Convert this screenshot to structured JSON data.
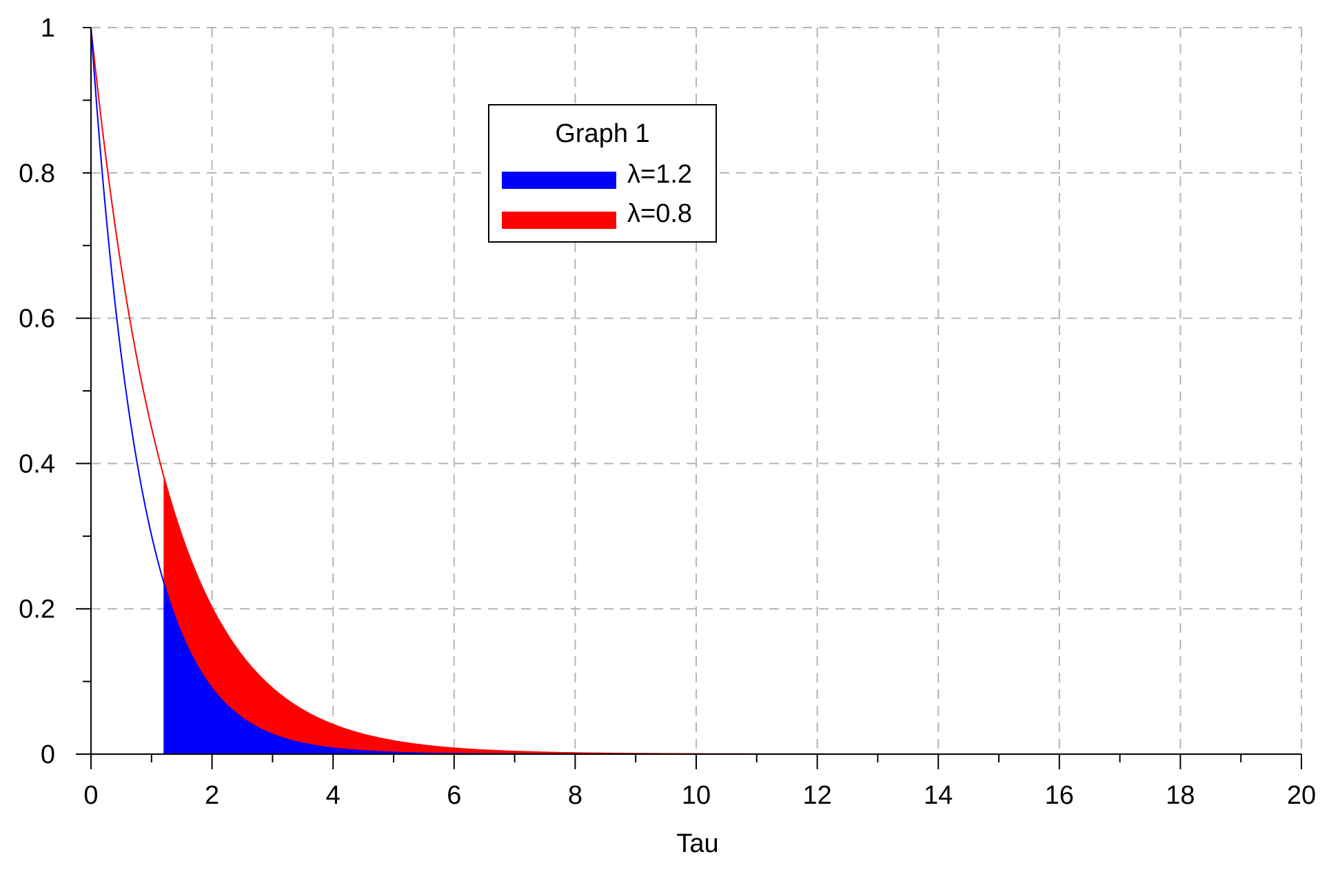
{
  "chart_data": {
    "type": "area",
    "title": "",
    "xlabel": "Tau",
    "ylabel": "",
    "xlim": [
      0,
      20
    ],
    "ylim": [
      0,
      1
    ],
    "xticks": [
      0,
      2,
      4,
      6,
      8,
      10,
      12,
      14,
      16,
      18,
      20
    ],
    "yticks": [
      0,
      0.2,
      0.4,
      0.6,
      0.8,
      1
    ],
    "ytick_labels": [
      "0",
      "0.2",
      "0.4",
      "0.6",
      "0.8",
      "1"
    ],
    "xtick_labels": [
      "0",
      "2",
      "4",
      "6",
      "8",
      "10",
      "12",
      "14",
      "16",
      "18",
      "20"
    ],
    "grid": true,
    "shade_from_x": 1.2,
    "legend": {
      "title": "Graph 1",
      "placement": "top-center"
    },
    "series": [
      {
        "name": "λ=0.8",
        "color": "#ff0000",
        "x": [
          0,
          0.4,
          0.8,
          1.2,
          1.6,
          2,
          2.5,
          3,
          3.5,
          4,
          5,
          6,
          7,
          8,
          9,
          10,
          12,
          14,
          16,
          18,
          20
        ],
        "values": [
          1,
          0.726,
          0.527,
          0.383,
          0.278,
          0.202,
          0.135,
          0.091,
          0.061,
          0.041,
          0.018,
          0.008,
          0.004,
          0.002,
          0.001,
          0.0003,
          0.0001,
          0,
          0,
          0,
          0
        ]
      },
      {
        "name": "λ=1.2",
        "color": "#0000ff",
        "x": [
          0,
          0.4,
          0.8,
          1.2,
          1.6,
          2,
          2.5,
          3,
          3.5,
          4,
          5,
          6,
          7,
          8,
          9,
          10,
          12,
          14,
          16,
          18,
          20
        ],
        "values": [
          1,
          0.619,
          0.383,
          0.237,
          0.147,
          0.091,
          0.05,
          0.027,
          0.015,
          0.008,
          0.002,
          0.001,
          0.0002,
          0.0001,
          0,
          0,
          0,
          0,
          0,
          0,
          0
        ]
      }
    ]
  }
}
